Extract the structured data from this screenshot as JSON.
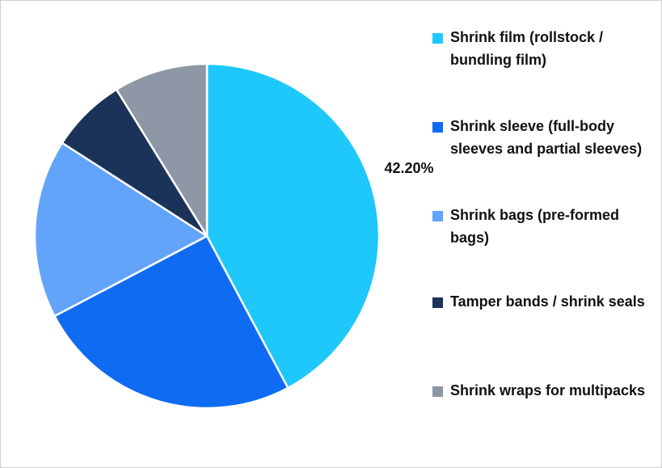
{
  "chart_data": {
    "type": "pie",
    "categories": [
      "Shrink film (rollstock / bundling film)",
      "Shrink sleeve (full-body sleeves and partial sleeves)",
      "Shrink bags (pre-formed bags)",
      "Tamper bands / shrink seals",
      "Shrink wraps for multipacks"
    ],
    "values": [
      42.2,
      25.1,
      16.8,
      7.1,
      8.8
    ],
    "value_labels": [
      "42.20%",
      null,
      null,
      null,
      null
    ],
    "colors": [
      "#1ec8fa",
      "#0f6cf2",
      "#62a4fa",
      "#1b3358",
      "#8e97a5"
    ],
    "legend": "right"
  }
}
